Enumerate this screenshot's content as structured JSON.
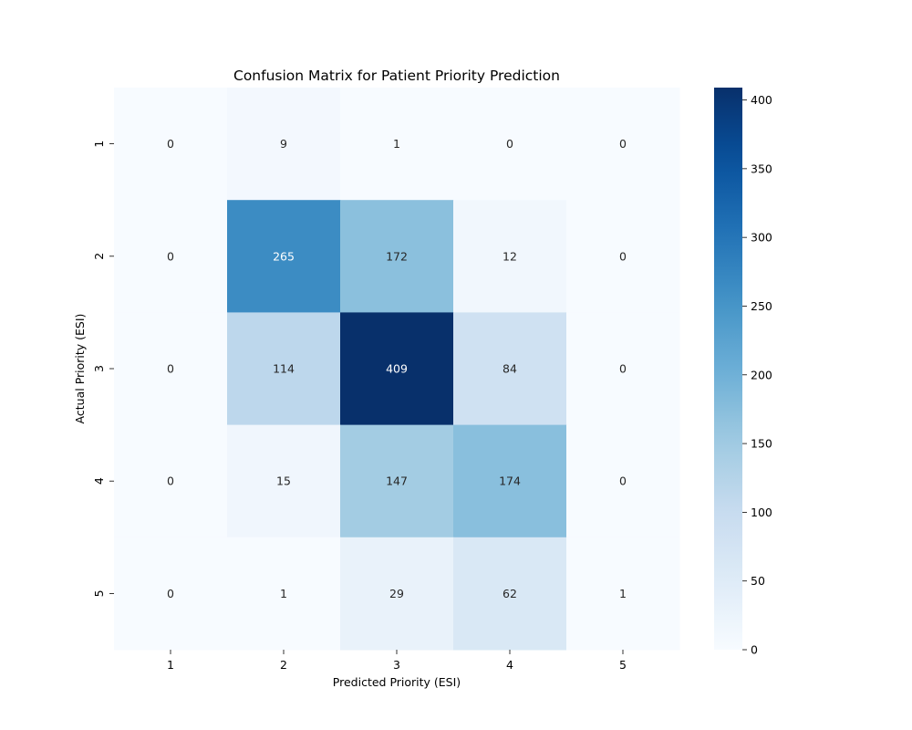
{
  "chart_data": {
    "type": "heatmap",
    "title": "Confusion Matrix for Patient Priority Prediction",
    "xlabel": "Predicted Priority (ESI)",
    "ylabel": "Actual Priority (ESI)",
    "x_categories": [
      "1",
      "2",
      "3",
      "4",
      "5"
    ],
    "y_categories": [
      "1",
      "2",
      "3",
      "4",
      "5"
    ],
    "values": [
      [
        0,
        9,
        1,
        0,
        0
      ],
      [
        0,
        265,
        172,
        12,
        0
      ],
      [
        0,
        114,
        409,
        84,
        0
      ],
      [
        0,
        15,
        147,
        174,
        0
      ],
      [
        0,
        1,
        29,
        62,
        1
      ]
    ],
    "colormap": "Blues",
    "colorbar": {
      "range": [
        0,
        409
      ],
      "ticks": [
        0,
        50,
        100,
        150,
        200,
        250,
        300,
        350,
        400
      ]
    },
    "annotations": true,
    "grid": false
  }
}
